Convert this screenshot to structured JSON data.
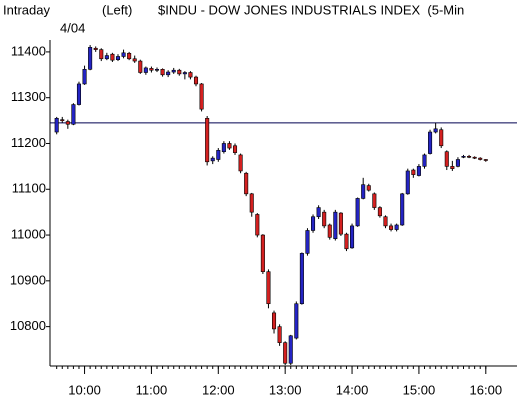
{
  "chart_data": {
    "type": "candlestick",
    "title": "$INDU - DOW JONES INDUSTRIALS INDEX  (5-Min",
    "label": "Intraday",
    "axis_side": "(Left)",
    "date": "4/04",
    "up_color": "#2424c4",
    "down_color": "#d42020",
    "reference_line": 11245,
    "xlim": [
      569,
      988
    ],
    "ylim": [
      10714,
      11426
    ],
    "xticks": [
      {
        "value": 600,
        "label": "10:00"
      },
      {
        "value": 660,
        "label": "11:00"
      },
      {
        "value": 720,
        "label": "12:00"
      },
      {
        "value": 780,
        "label": "13:00"
      },
      {
        "value": 840,
        "label": "14:00"
      },
      {
        "value": 900,
        "label": "15:00"
      },
      {
        "value": 960,
        "label": "16:00"
      }
    ],
    "yticks": [
      10800,
      10900,
      11000,
      11100,
      11200,
      11300,
      11400
    ],
    "x": [
      575,
      580,
      585,
      590,
      595,
      600,
      605,
      610,
      615,
      620,
      625,
      630,
      635,
      640,
      645,
      650,
      655,
      660,
      665,
      670,
      675,
      680,
      685,
      690,
      695,
      700,
      705,
      710,
      715,
      720,
      725,
      730,
      735,
      740,
      745,
      750,
      755,
      760,
      765,
      770,
      775,
      780,
      785,
      790,
      795,
      800,
      805,
      810,
      815,
      820,
      825,
      830,
      835,
      840,
      845,
      850,
      855,
      860,
      865,
      870,
      875,
      880,
      885,
      890,
      895,
      900,
      905,
      910,
      915,
      920,
      925,
      930,
      935,
      940,
      945,
      950,
      955,
      960
    ],
    "open": [
      11225,
      11252,
      11248,
      11242,
      11285,
      11330,
      11362,
      11408,
      11405,
      11385,
      11395,
      11383,
      11390,
      11397,
      11385,
      11380,
      11355,
      11364,
      11360,
      11362,
      11350,
      11356,
      11360,
      11352,
      11355,
      11345,
      11330,
      11255,
      11162,
      11165,
      11182,
      11200,
      11195,
      11175,
      11135,
      11090,
      11045,
      11000,
      10920,
      10830,
      10800,
      10765,
      10720,
      10775,
      10850,
      10960,
      11010,
      11040,
      11050,
      11022,
      10992,
      11048,
      11002,
      10972,
      11020,
      11080,
      11108,
      11090,
      11060,
      11040,
      11020,
      11012,
      11022,
      11090,
      11142,
      11130,
      11150,
      11178,
      11225,
      11230,
      11182,
      11150,
      11150,
      11170,
      11172,
      11170,
      11168,
      11165
    ],
    "high": [
      11258,
      11258,
      11252,
      11288,
      11335,
      11370,
      11415,
      11412,
      11408,
      11398,
      11398,
      11395,
      11405,
      11400,
      11392,
      11383,
      11368,
      11368,
      11366,
      11364,
      11360,
      11365,
      11363,
      11358,
      11358,
      11348,
      11332,
      11260,
      11172,
      11190,
      11205,
      11205,
      11200,
      11178,
      11138,
      11092,
      11048,
      11002,
      10925,
      10835,
      10805,
      10768,
      10782,
      10855,
      10962,
      11015,
      11045,
      11065,
      11055,
      11025,
      11055,
      11050,
      11005,
      11025,
      11082,
      11125,
      11112,
      11093,
      11063,
      11043,
      11025,
      11025,
      11092,
      11145,
      11145,
      11155,
      11178,
      11230,
      11245,
      11235,
      11185,
      11162,
      11170,
      11175,
      11175,
      11172,
      11170,
      11166
    ],
    "low": [
      11220,
      11245,
      11232,
      11240,
      11283,
      11328,
      11360,
      11400,
      11380,
      11382,
      11378,
      11380,
      11386,
      11382,
      11376,
      11352,
      11350,
      11355,
      11356,
      11346,
      11345,
      11352,
      11348,
      11340,
      11340,
      11325,
      11270,
      11152,
      11155,
      11160,
      11178,
      11186,
      11175,
      11135,
      11085,
      11040,
      10995,
      10915,
      10840,
      10785,
      10758,
      10716,
      10716,
      10772,
      10848,
      10955,
      11005,
      11035,
      11015,
      10990,
      10988,
      10998,
      10965,
      10970,
      11018,
      11078,
      11095,
      11055,
      11038,
      11015,
      11008,
      11008,
      11020,
      11088,
      11125,
      11128,
      11145,
      11176,
      11222,
      11190,
      11142,
      11140,
      11148,
      11168,
      11168,
      11166,
      11163,
      11160
    ],
    "close": [
      11255,
      11250,
      11242,
      11285,
      11330,
      11362,
      11410,
      11405,
      11385,
      11392,
      11382,
      11390,
      11398,
      11385,
      11380,
      11355,
      11365,
      11360,
      11362,
      11350,
      11356,
      11360,
      11352,
      11355,
      11345,
      11330,
      11275,
      11160,
      11168,
      11185,
      11200,
      11190,
      11180,
      11140,
      11090,
      11050,
      11000,
      10920,
      10850,
      10795,
      10765,
      10720,
      10780,
      10850,
      10960,
      11010,
      11040,
      11060,
      11020,
      10995,
      11050,
      11002,
      10970,
      11020,
      11080,
      11110,
      11098,
      11060,
      11042,
      11020,
      11012,
      11022,
      11090,
      11140,
      11132,
      11150,
      11175,
      11225,
      11232,
      11195,
      11150,
      11145,
      11165,
      11172,
      11170,
      11168,
      11165,
      11163
    ]
  }
}
